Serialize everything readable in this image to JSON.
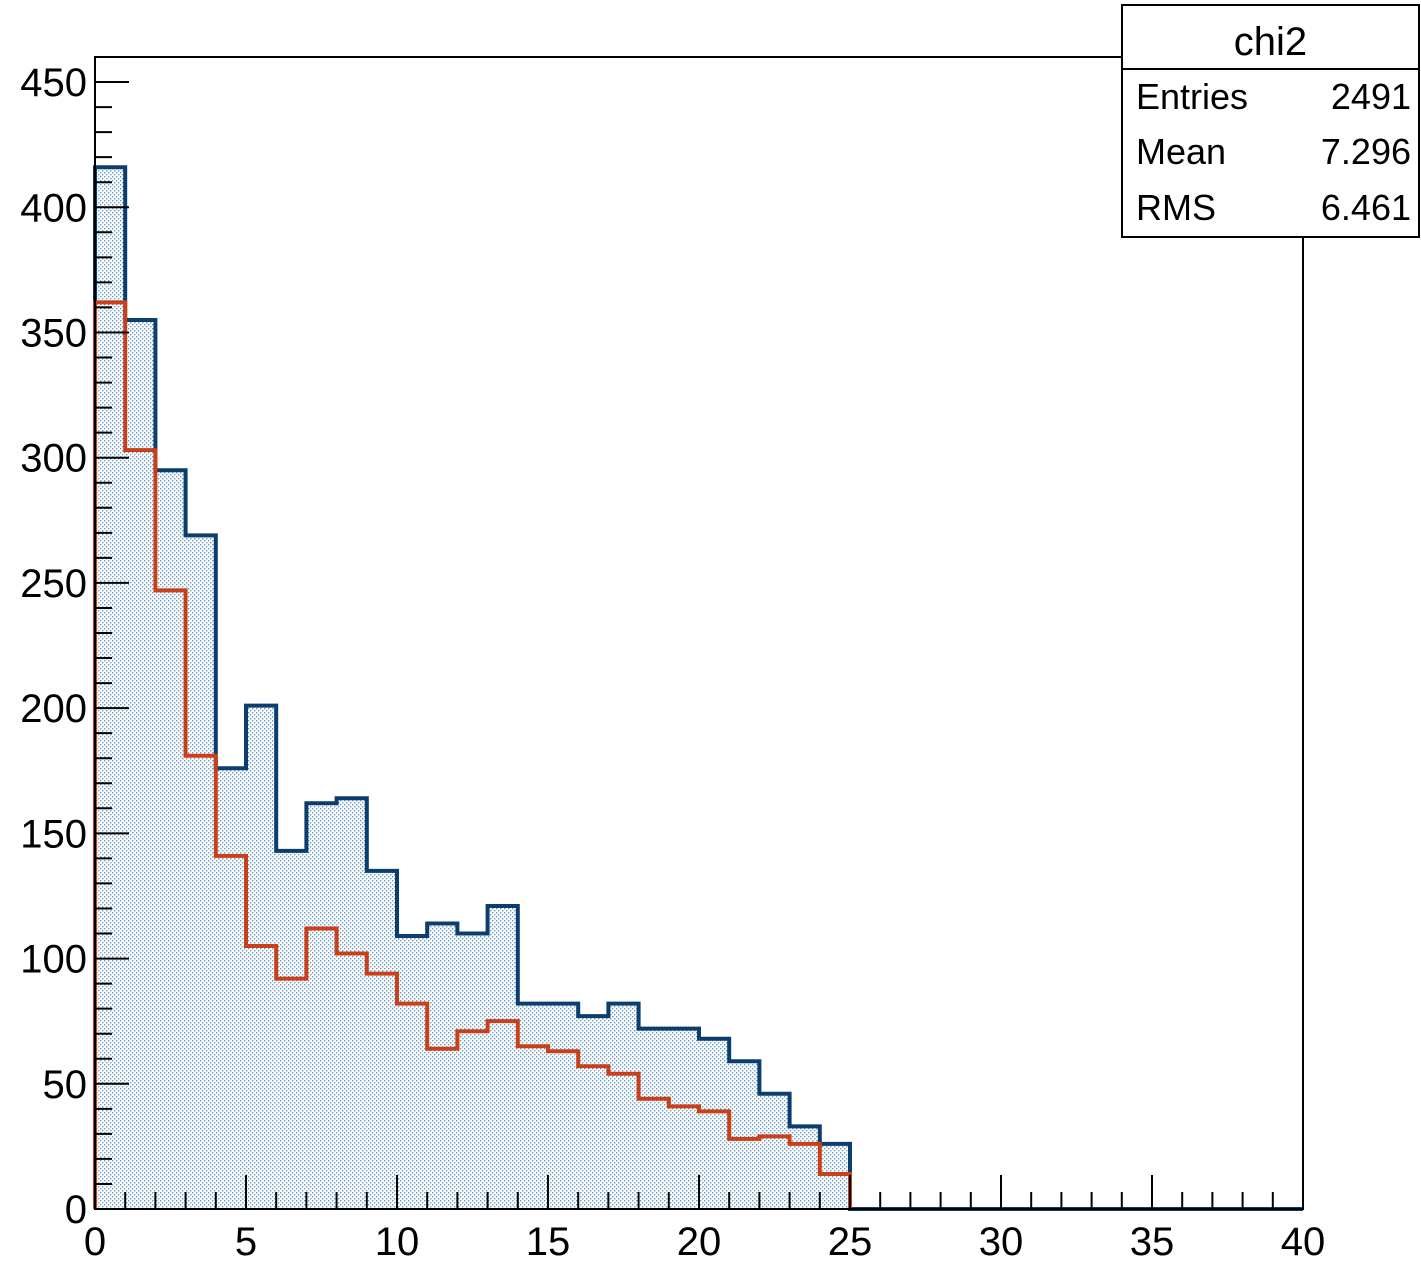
{
  "chart_data": {
    "type": "histogram",
    "title": "",
    "xlabel": "",
    "ylabel": "",
    "xlim": [
      0,
      40
    ],
    "ylim": [
      0,
      460
    ],
    "bin_width": 1,
    "x_ticks": [
      "0",
      "5",
      "10",
      "15",
      "20",
      "25",
      "30",
      "35",
      "40"
    ],
    "y_ticks": [
      "0",
      "50",
      "100",
      "150",
      "200",
      "250",
      "300",
      "350",
      "400",
      "450"
    ],
    "x_tick_values": [
      0,
      5,
      10,
      15,
      20,
      25,
      30,
      35,
      40
    ],
    "y_tick_values": [
      0,
      50,
      100,
      150,
      200,
      250,
      300,
      350,
      400,
      450
    ],
    "grid": false,
    "series": [
      {
        "color": "#0b3d6e",
        "fill": "dotted-light-blue",
        "bin_edges": [
          0,
          1,
          2,
          3,
          4,
          5,
          6,
          7,
          8,
          9,
          10,
          11,
          12,
          13,
          14,
          15,
          16,
          17,
          18,
          19,
          20,
          21,
          22,
          23,
          24,
          25,
          26,
          27,
          28,
          29,
          30,
          31,
          32,
          33,
          34,
          35,
          36,
          37,
          38,
          39,
          40
        ],
        "values": [
          416,
          355,
          295,
          269,
          176,
          201,
          143,
          162,
          164,
          135,
          109,
          114,
          110,
          121,
          82,
          82,
          77,
          82,
          72,
          72,
          68,
          59,
          46,
          33,
          26,
          0,
          0,
          0,
          0,
          0,
          0,
          0,
          0,
          0,
          0,
          0,
          0,
          0,
          0,
          0
        ]
      },
      {
        "color": "#c8401a",
        "fill": "none",
        "bin_edges": [
          0,
          1,
          2,
          3,
          4,
          5,
          6,
          7,
          8,
          9,
          10,
          11,
          12,
          13,
          14,
          15,
          16,
          17,
          18,
          19,
          20,
          21,
          22,
          23,
          24,
          25
        ],
        "values": [
          362,
          303,
          247,
          181,
          141,
          105,
          92,
          112,
          102,
          94,
          82,
          64,
          71,
          75,
          65,
          63,
          57,
          54,
          44,
          41,
          39,
          28,
          29,
          26,
          14
        ]
      }
    ],
    "stats_box": {
      "title": "chi2",
      "position": "top-right",
      "rows": [
        {
          "label": "Entries",
          "value": "2491"
        },
        {
          "label": "Mean",
          "value": "7.296"
        },
        {
          "label": "RMS",
          "value": "6.461"
        }
      ]
    }
  }
}
